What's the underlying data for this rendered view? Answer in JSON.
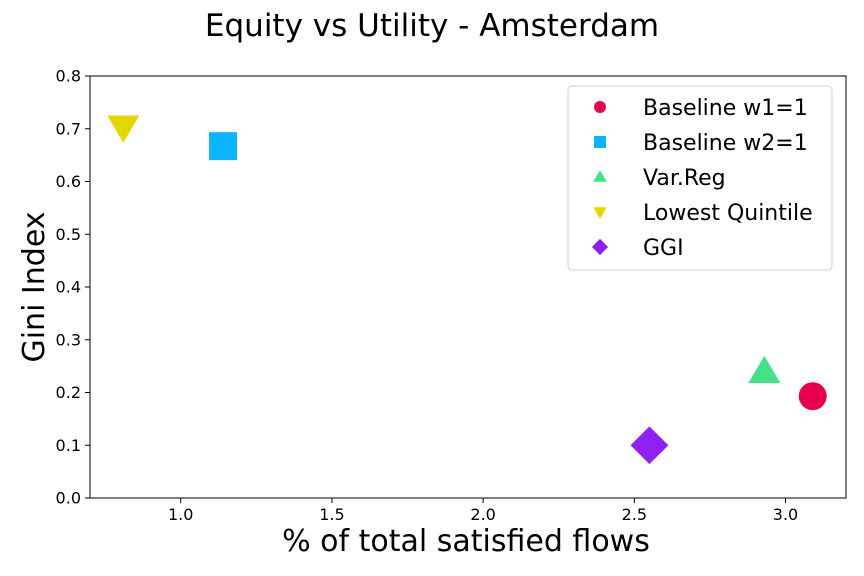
{
  "chart_data": {
    "type": "scatter",
    "title": "Equity vs Utility - Amsterdam",
    "xlabel": "% of total satisfied flows",
    "ylabel": "Gini Index",
    "xlim": [
      0.7,
      3.2
    ],
    "ylim": [
      0.0,
      0.8
    ],
    "xticks": [
      1.0,
      1.5,
      2.0,
      2.5,
      3.0
    ],
    "yticks": [
      0.0,
      0.1,
      0.2,
      0.3,
      0.4,
      0.5,
      0.6,
      0.7,
      0.8
    ],
    "grid": false,
    "legend_position": "upper-right",
    "series": [
      {
        "name": "Baseline w1=1",
        "marker": "circle",
        "color": "#e6004d",
        "x": [
          3.09
        ],
        "y": [
          0.193
        ]
      },
      {
        "name": "Baseline w2=1",
        "marker": "square",
        "color": "#0ab4ff",
        "x": [
          1.14
        ],
        "y": [
          0.667
        ]
      },
      {
        "name": "Var.Reg",
        "marker": "triangle-up",
        "color": "#47e08a",
        "x": [
          2.93
        ],
        "y": [
          0.239
        ]
      },
      {
        "name": "Lowest Quintile",
        "marker": "triangle-down",
        "color": "#e6d600",
        "x": [
          0.81
        ],
        "y": [
          0.704
        ]
      },
      {
        "name": "GGI",
        "marker": "diamond",
        "color": "#9120f5",
        "x": [
          2.55
        ],
        "y": [
          0.1
        ]
      }
    ]
  }
}
